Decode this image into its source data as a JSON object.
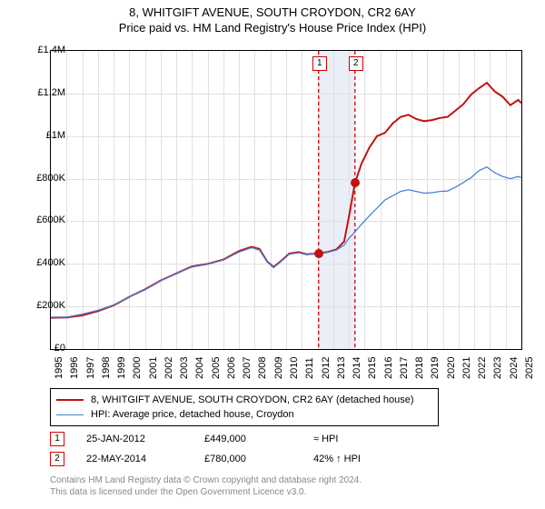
{
  "title": "8, WHITGIFT AVENUE, SOUTH CROYDON, CR2 6AY",
  "subtitle": "Price paid vs. HM Land Registry's House Price Index (HPI)",
  "chart": {
    "type": "line",
    "background_color": "#ffffff",
    "grid_color": "#e0e0e0",
    "border_color": "#000000",
    "x_year_min": 1995,
    "x_year_max": 2025,
    "xtick_years": [
      1995,
      1996,
      1997,
      1998,
      1999,
      2000,
      2001,
      2002,
      2003,
      2004,
      2005,
      2006,
      2007,
      2008,
      2009,
      2010,
      2011,
      2012,
      2013,
      2014,
      2015,
      2016,
      2017,
      2018,
      2019,
      2020,
      2021,
      2022,
      2023,
      2024,
      2025
    ],
    "ylim": [
      0,
      1400000
    ],
    "ytick_step": 200000,
    "yticks": [
      "£0",
      "£200K",
      "£400K",
      "£600K",
      "£800K",
      "£1M",
      "£1.2M",
      "£1.4M"
    ],
    "shaded_region": {
      "start": 2012.07,
      "end": 2014.39,
      "color": "#eaeef7"
    },
    "sale_vlines": [
      {
        "year": 2012.07,
        "label": "1",
        "color": "#d00000",
        "dash": "4,3"
      },
      {
        "year": 2014.39,
        "label": "2",
        "color": "#d00000",
        "dash": "4,3"
      }
    ],
    "series": [
      {
        "name": "property",
        "label": "8, WHITGIFT AVENUE, SOUTH CROYDON, CR2 6AY (detached house)",
        "color": "#c41010",
        "line_width": 2,
        "points": [
          [
            1995.0,
            147000
          ],
          [
            1996.0,
            148000
          ],
          [
            1997.0,
            158000
          ],
          [
            1998.0,
            178000
          ],
          [
            1999.0,
            205000
          ],
          [
            2000.0,
            245000
          ],
          [
            2001.0,
            280000
          ],
          [
            2002.0,
            322000
          ],
          [
            2003.0,
            355000
          ],
          [
            2004.0,
            388000
          ],
          [
            2005.0,
            400000
          ],
          [
            2006.0,
            420000
          ],
          [
            2007.0,
            460000
          ],
          [
            2007.8,
            480000
          ],
          [
            2008.3,
            470000
          ],
          [
            2008.8,
            410000
          ],
          [
            2009.2,
            385000
          ],
          [
            2009.7,
            415000
          ],
          [
            2010.2,
            448000
          ],
          [
            2010.8,
            455000
          ],
          [
            2011.3,
            445000
          ],
          [
            2012.07,
            449000
          ],
          [
            2012.6,
            455000
          ],
          [
            2013.2,
            468000
          ],
          [
            2013.7,
            505000
          ],
          [
            2014.0,
            620000
          ],
          [
            2014.39,
            780000
          ],
          [
            2014.8,
            870000
          ],
          [
            2015.3,
            945000
          ],
          [
            2015.8,
            1000000
          ],
          [
            2016.3,
            1015000
          ],
          [
            2016.8,
            1060000
          ],
          [
            2017.3,
            1090000
          ],
          [
            2017.8,
            1100000
          ],
          [
            2018.3,
            1080000
          ],
          [
            2018.8,
            1070000
          ],
          [
            2019.3,
            1075000
          ],
          [
            2019.8,
            1085000
          ],
          [
            2020.3,
            1090000
          ],
          [
            2020.8,
            1120000
          ],
          [
            2021.3,
            1150000
          ],
          [
            2021.8,
            1195000
          ],
          [
            2022.3,
            1225000
          ],
          [
            2022.8,
            1250000
          ],
          [
            2023.3,
            1210000
          ],
          [
            2023.8,
            1185000
          ],
          [
            2024.3,
            1145000
          ],
          [
            2024.8,
            1170000
          ],
          [
            2025.0,
            1155000
          ]
        ]
      },
      {
        "name": "hpi",
        "label": "HPI: Average price, detached house, Croydon",
        "color": "#4a7fd6",
        "line_width": 1.3,
        "points": [
          [
            1995.0,
            150000
          ],
          [
            1996.0,
            150000
          ],
          [
            1997.0,
            164000
          ],
          [
            1998.0,
            182000
          ],
          [
            1999.0,
            207000
          ],
          [
            2000.0,
            245000
          ],
          [
            2001.0,
            278000
          ],
          [
            2002.0,
            320000
          ],
          [
            2003.0,
            355000
          ],
          [
            2004.0,
            385000
          ],
          [
            2005.0,
            398000
          ],
          [
            2006.0,
            418000
          ],
          [
            2007.0,
            456000
          ],
          [
            2007.8,
            476000
          ],
          [
            2008.3,
            465000
          ],
          [
            2008.8,
            408000
          ],
          [
            2009.2,
            382000
          ],
          [
            2009.7,
            412000
          ],
          [
            2010.2,
            445000
          ],
          [
            2010.8,
            452000
          ],
          [
            2011.3,
            443000
          ],
          [
            2012.07,
            449000
          ],
          [
            2012.6,
            453000
          ],
          [
            2013.2,
            465000
          ],
          [
            2013.7,
            488000
          ],
          [
            2014.0,
            520000
          ],
          [
            2014.39,
            550000
          ],
          [
            2014.8,
            585000
          ],
          [
            2015.3,
            625000
          ],
          [
            2015.8,
            662000
          ],
          [
            2016.3,
            700000
          ],
          [
            2016.8,
            720000
          ],
          [
            2017.3,
            740000
          ],
          [
            2017.8,
            748000
          ],
          [
            2018.3,
            740000
          ],
          [
            2018.8,
            732000
          ],
          [
            2019.3,
            734000
          ],
          [
            2019.8,
            740000
          ],
          [
            2020.3,
            742000
          ],
          [
            2020.8,
            760000
          ],
          [
            2021.3,
            782000
          ],
          [
            2021.8,
            805000
          ],
          [
            2022.3,
            838000
          ],
          [
            2022.8,
            855000
          ],
          [
            2023.3,
            828000
          ],
          [
            2023.8,
            810000
          ],
          [
            2024.3,
            800000
          ],
          [
            2024.8,
            810000
          ],
          [
            2025.0,
            805000
          ]
        ]
      }
    ],
    "sale_points": [
      {
        "year": 2012.07,
        "price": 449000,
        "color": "#c41010"
      },
      {
        "year": 2014.39,
        "price": 780000,
        "color": "#c41010"
      }
    ]
  },
  "sales": [
    {
      "n": "1",
      "date": "25-JAN-2012",
      "price": "£449,000",
      "vs_hpi": "≈ HPI"
    },
    {
      "n": "2",
      "date": "22-MAY-2014",
      "price": "£780,000",
      "vs_hpi": "42% ↑ HPI"
    }
  ],
  "footer": {
    "line1": "Contains HM Land Registry data © Crown copyright and database right 2024.",
    "line2": "This data is licensed under the Open Government Licence v3.0."
  }
}
